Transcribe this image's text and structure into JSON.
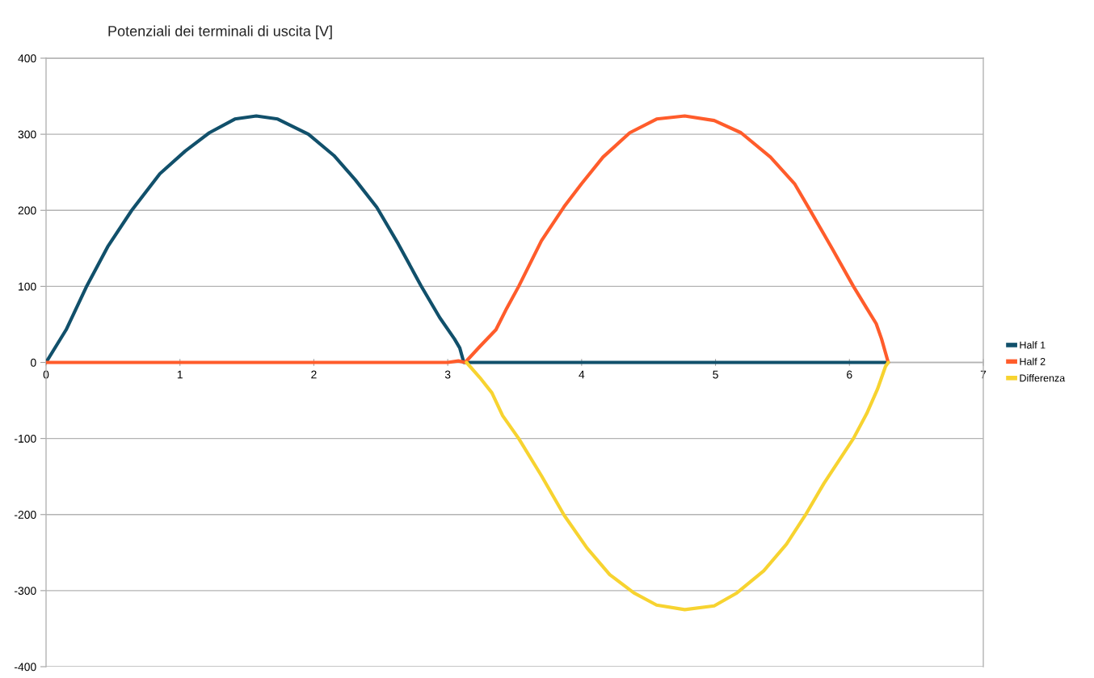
{
  "chart_data": {
    "type": "line",
    "title": "Potenziali dei terminali di uscita [V]",
    "xlim": [
      0,
      7
    ],
    "xticks": [
      0,
      1,
      2,
      3,
      4,
      5,
      6,
      7
    ],
    "ylim": [
      -400,
      400
    ],
    "yticks": [
      -400,
      -300,
      -200,
      -100,
      0,
      100,
      200,
      300,
      400
    ],
    "grid": "y",
    "legend": "right",
    "series": [
      {
        "name": "Half 1",
        "color": "#11506b",
        "x": [
          0,
          0.15,
          0.3,
          0.46,
          0.64,
          0.85,
          1.04,
          1.22,
          1.41,
          1.57,
          1.73,
          1.96,
          2.15,
          2.31,
          2.47,
          2.63,
          2.8,
          2.94,
          3.05,
          3.09,
          3.12,
          3.2,
          4,
          5,
          6,
          6.29
        ],
        "values": [
          0,
          43,
          99,
          152,
          200,
          248,
          278,
          302,
          320,
          324,
          320,
          300,
          272,
          240,
          204,
          156,
          101,
          59,
          31,
          19,
          0,
          0,
          0,
          0,
          0,
          0
        ]
      },
      {
        "name": "Half 2",
        "color": "#ff5c2b",
        "x": [
          0,
          1,
          2,
          3,
          3.08,
          3.13,
          3.24,
          3.36,
          3.44,
          3.53,
          3.7,
          3.87,
          4.0,
          4.16,
          4.36,
          4.56,
          4.77,
          4.99,
          5.19,
          5.41,
          5.59,
          5.7,
          5.87,
          6.03,
          6.13,
          6.2,
          6.24,
          6.29
        ],
        "values": [
          0,
          0,
          0,
          0,
          2,
          0,
          21,
          43,
          71,
          100,
          160,
          205,
          235,
          270,
          302,
          320,
          324,
          318,
          302,
          270,
          235,
          202,
          150,
          100,
          71,
          51,
          31,
          0
        ]
      },
      {
        "name": "Differenza",
        "color": "#f7d330",
        "x": [
          3.14,
          3.24,
          3.33,
          3.41,
          3.53,
          3.7,
          3.87,
          4.04,
          4.21,
          4.39,
          4.56,
          4.77,
          4.99,
          5.16,
          5.36,
          5.53,
          5.67,
          5.81,
          6.03,
          6.13,
          6.21,
          6.27,
          6.29
        ],
        "values": [
          0,
          -20,
          -40,
          -70,
          -100,
          -149,
          -201,
          -244,
          -279,
          -303,
          -319,
          -325,
          -320,
          -303,
          -274,
          -239,
          -201,
          -159,
          -100,
          -67,
          -35,
          -5,
          0
        ]
      }
    ]
  }
}
